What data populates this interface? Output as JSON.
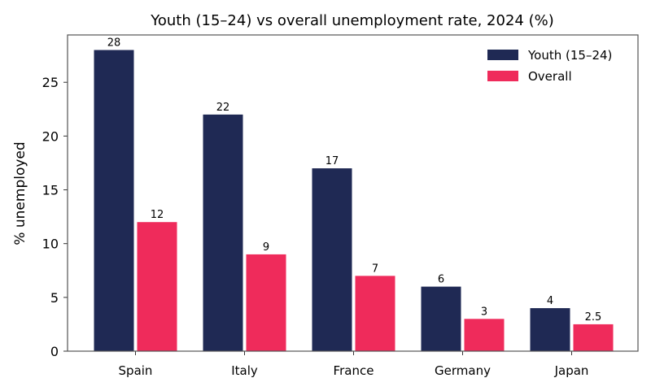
{
  "chart_data": {
    "type": "bar",
    "title": "Youth (15–24) vs overall unemployment rate, 2024 (%)",
    "xlabel": "",
    "ylabel": "% unemployed",
    "categories": [
      "Spain",
      "Italy",
      "France",
      "Germany",
      "Japan"
    ],
    "series": [
      {
        "name": "Youth (15–24)",
        "values": [
          28,
          22,
          17,
          6,
          4
        ],
        "labels": [
          "28",
          "22",
          "17",
          "6",
          "4"
        ],
        "color": "#1f2954"
      },
      {
        "name": "Overall",
        "values": [
          12,
          9,
          7,
          3,
          2.5
        ],
        "labels": [
          "12",
          "9",
          "7",
          "3",
          "2.5"
        ],
        "color": "#ef2b5b"
      }
    ],
    "ylim": [
      0,
      29.4
    ],
    "yticks": [
      0,
      5,
      10,
      15,
      20,
      25
    ],
    "ytick_labels": [
      "0",
      "5",
      "10",
      "15",
      "20",
      "25"
    ],
    "grid": false,
    "legend_position": "top-right"
  }
}
